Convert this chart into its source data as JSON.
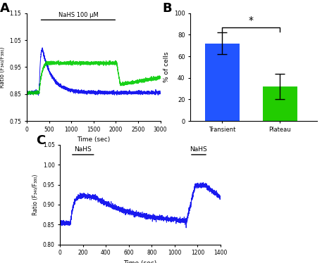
{
  "panel_A": {
    "label": "A",
    "xlim": [
      0,
      3000
    ],
    "ylim": [
      0.75,
      1.15
    ],
    "yticks": [
      0.75,
      0.85,
      0.95,
      1.05,
      1.15
    ],
    "xticks": [
      0,
      500,
      1000,
      1500,
      2000,
      2500,
      3000
    ],
    "xlabel": "Time (sec)",
    "ylabel": "Ratio (F₃₄₀/F₃₈₀)",
    "nahs_label": "NaHS 100 μM",
    "nahs_bar_start": 280,
    "nahs_bar_end": 2030,
    "nahs_bar_y": 1.125,
    "blue_color": "#0000EE",
    "green_color": "#00CC00"
  },
  "panel_B": {
    "label": "B",
    "categories": [
      "Transient",
      "Plateau"
    ],
    "values": [
      72,
      32
    ],
    "errors": [
      10,
      12
    ],
    "colors": [
      "#2255FF",
      "#22CC00"
    ],
    "ylabel": "% of cells",
    "ylim": [
      0,
      100
    ],
    "yticks": [
      0,
      20,
      40,
      60,
      80,
      100
    ],
    "sig_label": "*",
    "sig_y": 87,
    "bracket_tick_height": 4
  },
  "panel_C": {
    "label": "C",
    "xlim": [
      0,
      1400
    ],
    "ylim": [
      0.8,
      1.05
    ],
    "yticks": [
      0.8,
      0.85,
      0.9,
      0.95,
      1.0,
      1.05
    ],
    "xticks": [
      0,
      200,
      400,
      600,
      800,
      1000,
      1200,
      1400
    ],
    "xlabel": "Time (sec)",
    "ylabel": "Ratio (F₃₄₀/F₃₈₀)",
    "nahs1_label": "NaHS",
    "nahs1_start": 90,
    "nahs1_end": 310,
    "nahs2_label": "NaHS",
    "nahs2_start": 1130,
    "nahs2_end": 1290,
    "nahs_bar_y": 1.025,
    "blue_color": "#0000EE"
  }
}
